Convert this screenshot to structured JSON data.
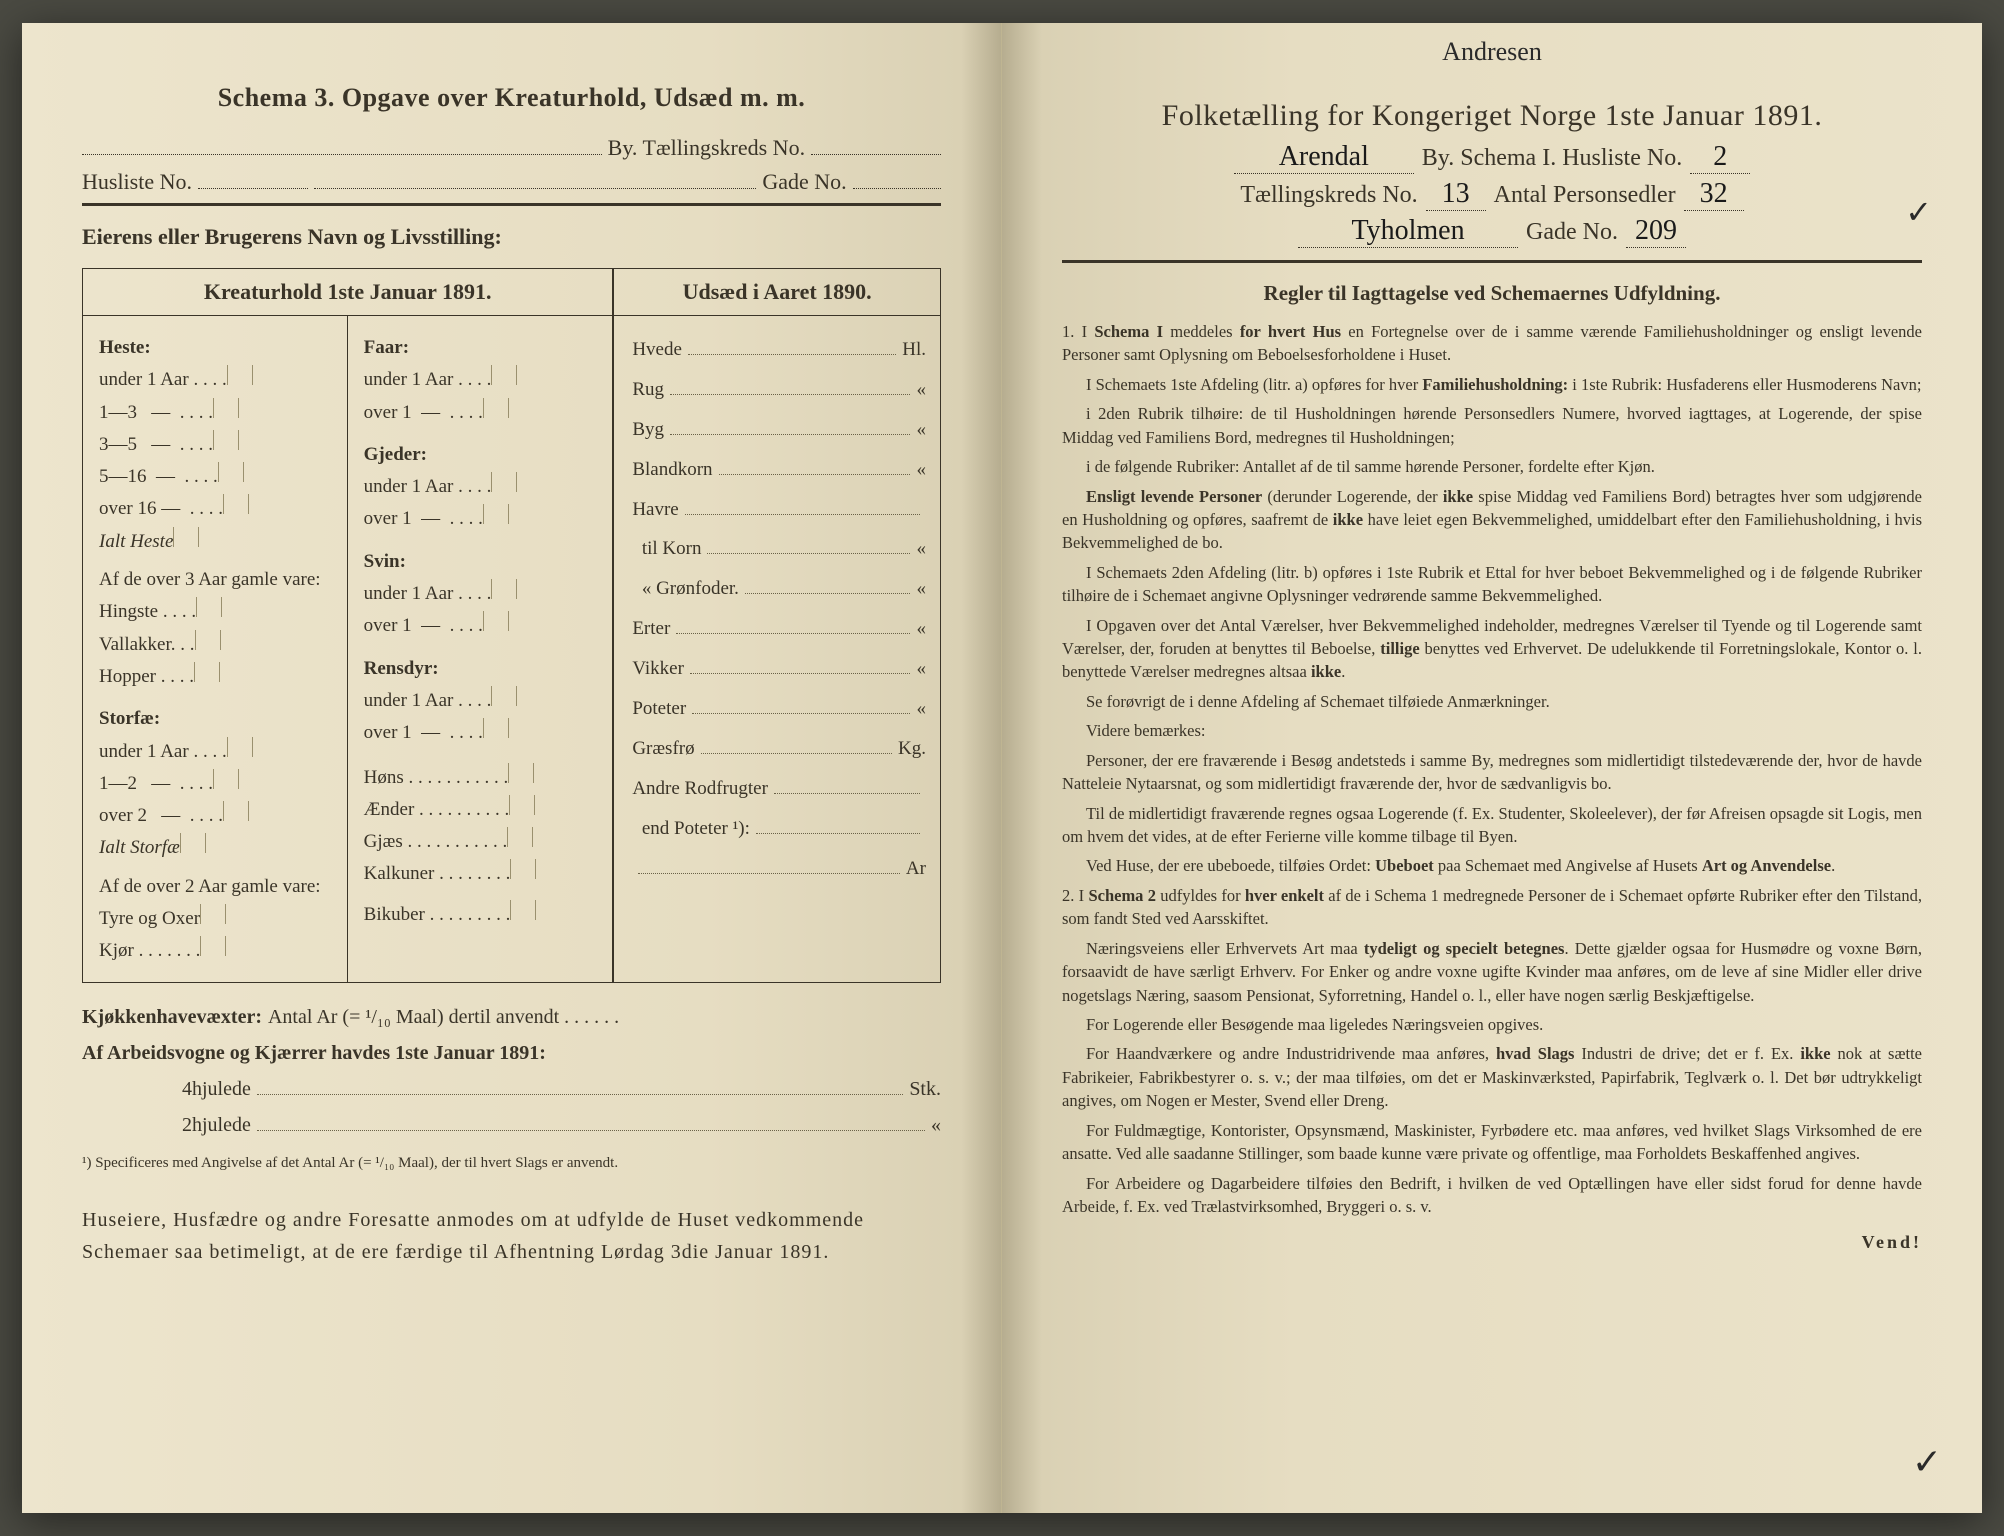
{
  "colors": {
    "paper": "#e8dfc5",
    "ink": "#3a3428",
    "handwriting": "#1a1a1a",
    "background": "#4a4a42"
  },
  "leftPage": {
    "title": "Schema 3.  Opgave over Kreaturhold, Udsæd m. m.",
    "byLabel": "By.  Tællingskreds No.",
    "huslisteLabel": "Husliste No.",
    "gadeLabel": "Gade No.",
    "ownerLabel": "Eierens eller Brugerens Navn og Livsstilling:",
    "kreaturHeader": "Kreaturhold 1ste Januar 1891.",
    "udsaedHeader": "Udsæd i Aaret 1890.",
    "heste": {
      "label": "Heste:",
      "rows": [
        "under 1 Aar . . . .",
        "1—3   —  . . . .",
        "3—5   —  . . . .",
        "5—16  —  . . . .",
        "over 16 —  . . . ."
      ],
      "ialt": "Ialt Heste",
      "over3": "Af de over 3 Aar gamle vare:",
      "over3rows": [
        "Hingste . . . .",
        "Vallakker. . .",
        "Hopper . . . ."
      ]
    },
    "storfae": {
      "label": "Storfæ:",
      "rows": [
        "under 1 Aar . . . .",
        "1—2   —  . . . .",
        "over 2   —  . . . ."
      ],
      "ialt": "Ialt Storfæ",
      "over2": "Af de over 2 Aar gamle vare:",
      "over2rows": [
        "Tyre og Oxer",
        "Kjør . . . . . . ."
      ]
    },
    "faar": {
      "label": "Faar:",
      "rows": [
        "under 1 Aar . . . .",
        "over 1  —  . . . ."
      ]
    },
    "gjeder": {
      "label": "Gjeder:",
      "rows": [
        "under 1 Aar . . . .",
        "over 1  —  . . . ."
      ]
    },
    "svin": {
      "label": "Svin:",
      "rows": [
        "under 1 Aar . . . .",
        "over 1  —  . . . ."
      ]
    },
    "rensdyr": {
      "label": "Rensdyr:",
      "rows": [
        "under 1 Aar . . . .",
        "over 1  —  . . . ."
      ]
    },
    "poultry": [
      "Høns . . . . . . . . . . .",
      "Ænder . . . . . . . . . .",
      "Gjæs . . . . . . . . . . .",
      "Kalkuner . . . . . . . .",
      "Bikuber . . . . . . . . ."
    ],
    "udsaed": [
      {
        "l": "Hvede",
        "u": "Hl."
      },
      {
        "l": "Rug",
        "u": "«"
      },
      {
        "l": "Byg",
        "u": "«"
      },
      {
        "l": "Blandkorn",
        "u": "«"
      },
      {
        "l": "Havre",
        "u": ""
      },
      {
        "l": "  til Korn",
        "u": "«"
      },
      {
        "l": "  « Grønfoder.",
        "u": "«"
      },
      {
        "l": "Erter",
        "u": "«"
      },
      {
        "l": "Vikker",
        "u": "«"
      },
      {
        "l": "Poteter",
        "u": "«"
      },
      {
        "l": "Græsfrø",
        "u": "Kg."
      },
      {
        "l": "Andre Rodfrugter",
        "u": ""
      },
      {
        "l": "  end Poteter ¹):",
        "u": ""
      },
      {
        "l": "",
        "u": "Ar"
      }
    ],
    "kjokken": "Kjøkkenhavevæxter:",
    "kjokkenText": "Antal Ar (= ¹/₁₀ Maal) dertil anvendt . . . . . .",
    "vogner": "Af Arbeidsvogne og Kjærrer havdes 1ste Januar 1891:",
    "hjul4": "4hjulede",
    "hjul2": "2hjulede",
    "stk": "Stk.",
    "footnote": "¹) Specificeres med Angivelse af det Antal Ar (= ¹/₁₀ Maal), der til hvert Slags er anvendt.",
    "footer": "Huseiere, Husfædre og andre Foresatte anmodes om at udfylde de Huset vedkommende Schemaer saa betimeligt, at de ere færdige til Afhentning Lørdag 3die Januar 1891."
  },
  "rightPage": {
    "handTop": "Andresen",
    "title": "Folketælling for Kongeriget Norge 1ste Januar 1891.",
    "byHand": "Arendal",
    "byLabel": "By.  Schema I.  Husliste No.",
    "huslisteHand": "2",
    "kredsLabel": "Tællingskreds No.",
    "kredsHand": "13",
    "personLabel": "Antal Personsedler",
    "personHand": "32",
    "gadeHand": "Tyholmen",
    "gadeLabel": "Gade No.",
    "gadeNoHand": "209",
    "rulesTitle": "Regler til Iagttagelse ved Schemaernes Udfyldning.",
    "rules": [
      "1. I Schema I meddeles for hvert Hus en Fortegnelse over de i samme værende Familiehusholdninger og ensligt levende Personer samt Oplysning om Beboelsesforholdene i Huset.",
      "I Schemaets 1ste Afdeling (litr. a) opføres for hver Familiehusholdning: i 1ste Rubrik: Husfaderens eller Husmoderens Navn;",
      "i 2den Rubrik tilhøire: de til Husholdningen hørende Personsedlers Numere, hvorved iagttages, at Logerende, der spise Middag ved Familiens Bord, medregnes til Husholdningen;",
      "i de følgende Rubriker: Antallet af de til samme hørende Personer, fordelte efter Kjøn.",
      "Ensligt levende Personer (derunder Logerende, der ikke spise Middag ved Familiens Bord) betragtes hver som udgjørende en Husholdning og opføres, saafremt de ikke have leiet egen Bekvemmelighed, umiddelbart efter den Familiehusholdning, i hvis Bekvemmelighed de bo.",
      "I Schemaets 2den Afdeling (litr. b) opføres i 1ste Rubrik et Ettal for hver beboet Bekvemmelighed og i de følgende Rubriker tilhøire de i Schemaet angivne Oplysninger vedrørende samme Bekvemmelighed.",
      "I Opgaven over det Antal Værelser, hver Bekvemmelighed indeholder, medregnes Værelser til Tyende og til Logerende samt Værelser, der, foruden at benyttes til Beboelse, tillige benyttes ved Erhvervet. De udelukkende til Forretningslokale, Kontor o. l. benyttede Værelser medregnes altsaa ikke.",
      "Se forøvrigt de i denne Afdeling af Schemaet tilføiede Anmærkninger.",
      "Videre bemærkes:",
      "Personer, der ere fraværende i Besøg andetsteds i samme By, medregnes som midlertidigt tilstedeværende der, hvor de havde Natteleie Nytaarsnat, og som midlertidigt fraværende der, hvor de sædvanligvis bo.",
      "Til de midlertidigt fraværende regnes ogsaa Logerende (f. Ex. Studenter, Skoleelever), der før Afreisen opsagde sit Logis, men om hvem det vides, at de efter Ferierne ville komme tilbage til Byen.",
      "Ved Huse, der ere ubeboede, tilføies Ordet: Ubeboet paa Schemaet med Angivelse af Husets Art og Anvendelse.",
      "2. I Schema 2 udfyldes for hver enkelt af de i Schema 1 medregnede Personer de i Schemaet opførte Rubriker efter den Tilstand, som fandt Sted ved Aarsskiftet.",
      "Næringsveiens eller Erhvervets Art maa tydeligt og specielt betegnes. Dette gjælder ogsaa for Husmødre og voxne Børn, forsaavidt de have særligt Erhverv. For Enker og andre voxne ugifte Kvinder maa anføres, om de leve af sine Midler eller drive nogetslags Næring, saasom Pensionat, Syforretning, Handel o. l., eller have nogen særlig Beskjæftigelse.",
      "For Logerende eller Besøgende maa ligeledes Næringsveien opgives.",
      "For Haandværkere og andre Industridrivende maa anføres, hvad Slags Industri de drive; det er f. Ex. ikke nok at sætte Fabrikeier, Fabrikbestyrer o. s. v.; der maa tilføies, om det er Maskinværksted, Papirfabrik, Teglværk o. l. Det bør udtrykkeligt angives, om Nogen er Mester, Svend eller Dreng.",
      "For Fuldmægtige, Kontorister, Opsynsmænd, Maskinister, Fyrbødere etc. maa anføres, ved hvilket Slags Virksomhed de ere ansatte. Ved alle saadanne Stillinger, som baade kunne være private og offentlige, maa Forholdets Beskaffenhed angives.",
      "For Arbeidere og Dagarbeidere tilføies den Bedrift, i hvilken de ved Optællingen have eller sidst forud for denne havde Arbeide, f. Ex. ved Trælastvirksomhed, Bryggeri o. s. v."
    ],
    "vend": "Vend!"
  }
}
